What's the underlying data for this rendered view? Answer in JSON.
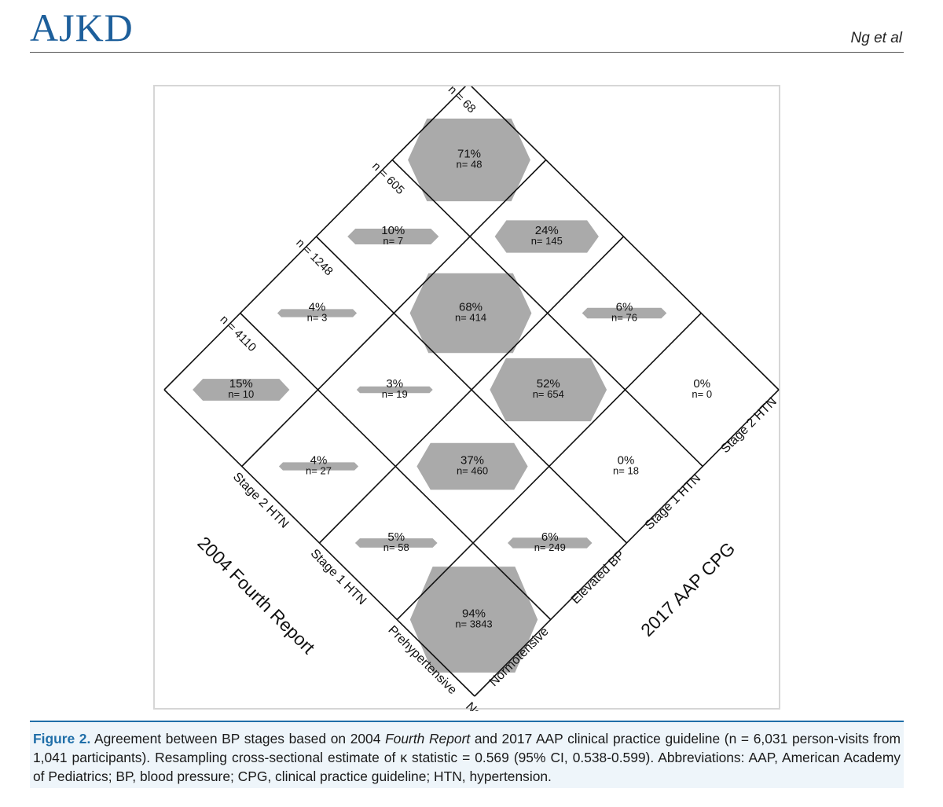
{
  "header": {
    "journal": "AJKD",
    "authors": "Ng et al"
  },
  "caption": {
    "label": "Figure 2.",
    "text_before": "Agreement between BP stages based on 2004 ",
    "italic": "Fourth Report",
    "text_after": " and 2017 AAP clinical practice guideline (n = 6,031 person-visits from 1,041 participants). Resampling cross-sectional estimate of κ statistic = 0.569 (95% CI, 0.538-0.599). Abbreviations: AAP, American Academy of Pediatrics; BP, blood pressure; CPG, clinical practice guideline; HTN, hypertension."
  },
  "chart_data": {
    "type": "agreement-diamond",
    "axis_left_title": "2004 Fourth Report",
    "axis_right_title": "2017 AAP CPG",
    "rows_2004": [
      "Normotensive",
      "Prehypertensive",
      "Stage 1 HTN",
      "Stage 2 HTN"
    ],
    "cols_2017": [
      "Normotensive",
      "Elevated BP",
      "Stage 1 HTN",
      "Stage 2 HTN"
    ],
    "column_totals": [
      "n = 4110",
      "n = 1248",
      "n = 605",
      "n = 68"
    ],
    "cells": [
      {
        "row": 0,
        "col": 0,
        "pct": "94%",
        "n": "n= 3843",
        "value": 94
      },
      {
        "row": 0,
        "col": 1,
        "pct": "6%",
        "n": "n= 249",
        "value": 6
      },
      {
        "row": 0,
        "col": 2,
        "pct": "0%",
        "n": "n= 18",
        "value": 0
      },
      {
        "row": 0,
        "col": 3,
        "pct": "0%",
        "n": "n= 0",
        "value": 0
      },
      {
        "row": 1,
        "col": 0,
        "pct": "5%",
        "n": "n= 58",
        "value": 5
      },
      {
        "row": 1,
        "col": 1,
        "pct": "37%",
        "n": "n= 460",
        "value": 37
      },
      {
        "row": 1,
        "col": 2,
        "pct": "52%",
        "n": "n= 654",
        "value": 52
      },
      {
        "row": 1,
        "col": 3,
        "pct": "6%",
        "n": "n= 76",
        "value": 6
      },
      {
        "row": 2,
        "col": 0,
        "pct": "4%",
        "n": "n= 27",
        "value": 4
      },
      {
        "row": 2,
        "col": 1,
        "pct": "3%",
        "n": "n= 19",
        "value": 3
      },
      {
        "row": 2,
        "col": 2,
        "pct": "68%",
        "n": "n= 414",
        "value": 68
      },
      {
        "row": 2,
        "col": 3,
        "pct": "24%",
        "n": "n= 145",
        "value": 24
      },
      {
        "row": 3,
        "col": 0,
        "pct": "15%",
        "n": "n= 10",
        "value": 15
      },
      {
        "row": 3,
        "col": 1,
        "pct": "4%",
        "n": "n= 3",
        "value": 4
      },
      {
        "row": 3,
        "col": 2,
        "pct": "10%",
        "n": "n= 7",
        "value": 10
      },
      {
        "row": 3,
        "col": 3,
        "pct": "71%",
        "n": "n= 48",
        "value": 71
      }
    ],
    "colors": {
      "marker": "#aaaaaa",
      "grid": "#111111"
    }
  }
}
